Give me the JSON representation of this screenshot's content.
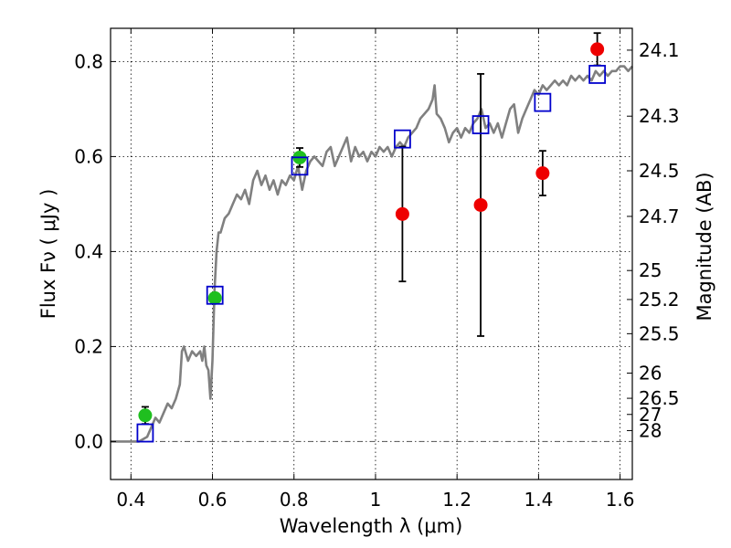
{
  "chart_data": {
    "type": "scatter",
    "title": "",
    "xlabel": "Wavelength  λ (μm)",
    "ylabel": "Flux  Fν  ( μJy )",
    "ylabel_right": "Magnitude (AB)",
    "xlim": [
      0.35,
      1.63
    ],
    "ylim": [
      -0.08,
      0.87
    ],
    "x_ticks": [
      0.4,
      0.6,
      0.8,
      1.0,
      1.2,
      1.4,
      1.6
    ],
    "x_tick_labels": [
      "0.4",
      "0.6",
      "0.8",
      "1",
      "1.2",
      "1.4",
      "1.6"
    ],
    "y_ticks": [
      0.0,
      0.2,
      0.4,
      0.6,
      0.8
    ],
    "y_tick_labels": [
      "0.0",
      "0.2",
      "0.4",
      "0.6",
      "0.8"
    ],
    "right_ticks": [
      {
        "label": "24.1",
        "flux": 0.824
      },
      {
        "label": "24.3",
        "flux": 0.685
      },
      {
        "label": "24.5",
        "flux": 0.57
      },
      {
        "label": "24.7",
        "flux": 0.474
      },
      {
        "label": "25",
        "flux": 0.36
      },
      {
        "label": "25.2",
        "flux": 0.299
      },
      {
        "label": "25.5",
        "flux": 0.227
      },
      {
        "label": "26",
        "flux": 0.144
      },
      {
        "label": "26.5",
        "flux": 0.091
      },
      {
        "label": "27",
        "flux": 0.057
      },
      {
        "label": "28",
        "flux": 0.023
      }
    ],
    "grid": true,
    "zero_line": true,
    "colors": {
      "model": "#808080",
      "green": "#1fbf1f",
      "red": "#ee0000",
      "square": "#0000cc",
      "errorbar": "#000000"
    },
    "series": [
      {
        "marker": "line",
        "color": "#808080",
        "points": [
          [
            0.35,
            0.0
          ],
          [
            0.4,
            0.0
          ],
          [
            0.42,
            0.0
          ],
          [
            0.44,
            0.01
          ],
          [
            0.45,
            0.03
          ],
          [
            0.46,
            0.05
          ],
          [
            0.47,
            0.04
          ],
          [
            0.48,
            0.06
          ],
          [
            0.49,
            0.08
          ],
          [
            0.5,
            0.07
          ],
          [
            0.51,
            0.09
          ],
          [
            0.52,
            0.12
          ],
          [
            0.525,
            0.19
          ],
          [
            0.53,
            0.2
          ],
          [
            0.54,
            0.17
          ],
          [
            0.55,
            0.19
          ],
          [
            0.56,
            0.18
          ],
          [
            0.57,
            0.19
          ],
          [
            0.575,
            0.17
          ],
          [
            0.58,
            0.2
          ],
          [
            0.585,
            0.16
          ],
          [
            0.59,
            0.15
          ],
          [
            0.595,
            0.09
          ],
          [
            0.6,
            0.17
          ],
          [
            0.605,
            0.32
          ],
          [
            0.61,
            0.4
          ],
          [
            0.615,
            0.44
          ],
          [
            0.62,
            0.44
          ],
          [
            0.63,
            0.47
          ],
          [
            0.64,
            0.48
          ],
          [
            0.65,
            0.5
          ],
          [
            0.66,
            0.52
          ],
          [
            0.67,
            0.51
          ],
          [
            0.68,
            0.53
          ],
          [
            0.69,
            0.5
          ],
          [
            0.7,
            0.55
          ],
          [
            0.71,
            0.57
          ],
          [
            0.72,
            0.54
          ],
          [
            0.73,
            0.56
          ],
          [
            0.74,
            0.53
          ],
          [
            0.75,
            0.55
          ],
          [
            0.76,
            0.52
          ],
          [
            0.77,
            0.55
          ],
          [
            0.78,
            0.54
          ],
          [
            0.79,
            0.56
          ],
          [
            0.8,
            0.55
          ],
          [
            0.81,
            0.58
          ],
          [
            0.82,
            0.53
          ],
          [
            0.83,
            0.57
          ],
          [
            0.84,
            0.59
          ],
          [
            0.85,
            0.6
          ],
          [
            0.86,
            0.59
          ],
          [
            0.87,
            0.58
          ],
          [
            0.88,
            0.61
          ],
          [
            0.89,
            0.62
          ],
          [
            0.9,
            0.58
          ],
          [
            0.91,
            0.6
          ],
          [
            0.92,
            0.62
          ],
          [
            0.93,
            0.64
          ],
          [
            0.94,
            0.59
          ],
          [
            0.95,
            0.62
          ],
          [
            0.96,
            0.6
          ],
          [
            0.97,
            0.61
          ],
          [
            0.98,
            0.59
          ],
          [
            0.99,
            0.61
          ],
          [
            1.0,
            0.6
          ],
          [
            1.01,
            0.62
          ],
          [
            1.02,
            0.61
          ],
          [
            1.03,
            0.62
          ],
          [
            1.04,
            0.6
          ],
          [
            1.05,
            0.62
          ],
          [
            1.06,
            0.63
          ],
          [
            1.07,
            0.62
          ],
          [
            1.08,
            0.64
          ],
          [
            1.09,
            0.65
          ],
          [
            1.1,
            0.66
          ],
          [
            1.11,
            0.68
          ],
          [
            1.12,
            0.69
          ],
          [
            1.13,
            0.7
          ],
          [
            1.14,
            0.72
          ],
          [
            1.145,
            0.75
          ],
          [
            1.15,
            0.69
          ],
          [
            1.16,
            0.68
          ],
          [
            1.17,
            0.66
          ],
          [
            1.18,
            0.63
          ],
          [
            1.19,
            0.65
          ],
          [
            1.2,
            0.66
          ],
          [
            1.21,
            0.64
          ],
          [
            1.22,
            0.66
          ],
          [
            1.23,
            0.65
          ],
          [
            1.24,
            0.67
          ],
          [
            1.25,
            0.68
          ],
          [
            1.26,
            0.7
          ],
          [
            1.27,
            0.66
          ],
          [
            1.28,
            0.67
          ],
          [
            1.29,
            0.65
          ],
          [
            1.3,
            0.67
          ],
          [
            1.31,
            0.64
          ],
          [
            1.32,
            0.67
          ],
          [
            1.33,
            0.7
          ],
          [
            1.34,
            0.71
          ],
          [
            1.35,
            0.65
          ],
          [
            1.36,
            0.68
          ],
          [
            1.37,
            0.7
          ],
          [
            1.38,
            0.72
          ],
          [
            1.39,
            0.74
          ],
          [
            1.4,
            0.73
          ],
          [
            1.41,
            0.75
          ],
          [
            1.42,
            0.74
          ],
          [
            1.43,
            0.75
          ],
          [
            1.44,
            0.76
          ],
          [
            1.45,
            0.75
          ],
          [
            1.46,
            0.76
          ],
          [
            1.47,
            0.75
          ],
          [
            1.48,
            0.77
          ],
          [
            1.49,
            0.76
          ],
          [
            1.5,
            0.77
          ],
          [
            1.51,
            0.76
          ],
          [
            1.52,
            0.77
          ],
          [
            1.53,
            0.76
          ],
          [
            1.54,
            0.78
          ],
          [
            1.55,
            0.77
          ],
          [
            1.56,
            0.78
          ],
          [
            1.57,
            0.77
          ],
          [
            1.58,
            0.78
          ],
          [
            1.59,
            0.78
          ],
          [
            1.6,
            0.79
          ],
          [
            1.61,
            0.79
          ],
          [
            1.62,
            0.78
          ],
          [
            1.63,
            0.79
          ]
        ]
      },
      {
        "marker": "circle",
        "color": "#1fbf1f",
        "points": [
          {
            "x": 0.435,
            "y": 0.055,
            "err": 0.018
          },
          {
            "x": 0.606,
            "y": 0.302,
            "err": 0.0
          },
          {
            "x": 0.814,
            "y": 0.598,
            "err": 0.02
          }
        ]
      },
      {
        "marker": "circle",
        "color": "#ee0000",
        "points": [
          {
            "x": 1.066,
            "y": 0.479,
            "err": 0.142
          },
          {
            "x": 1.258,
            "y": 0.498,
            "err": 0.276
          },
          {
            "x": 1.41,
            "y": 0.565,
            "err": 0.047
          },
          {
            "x": 1.544,
            "y": 0.826,
            "err": 0.034
          }
        ]
      },
      {
        "marker": "square",
        "color": "#0000cc",
        "points": [
          {
            "x": 0.435,
            "y": 0.018
          },
          {
            "x": 0.606,
            "y": 0.308
          },
          {
            "x": 0.814,
            "y": 0.58
          },
          {
            "x": 1.066,
            "y": 0.637
          },
          {
            "x": 1.258,
            "y": 0.667
          },
          {
            "x": 1.41,
            "y": 0.714
          },
          {
            "x": 1.544,
            "y": 0.773
          }
        ]
      }
    ]
  }
}
